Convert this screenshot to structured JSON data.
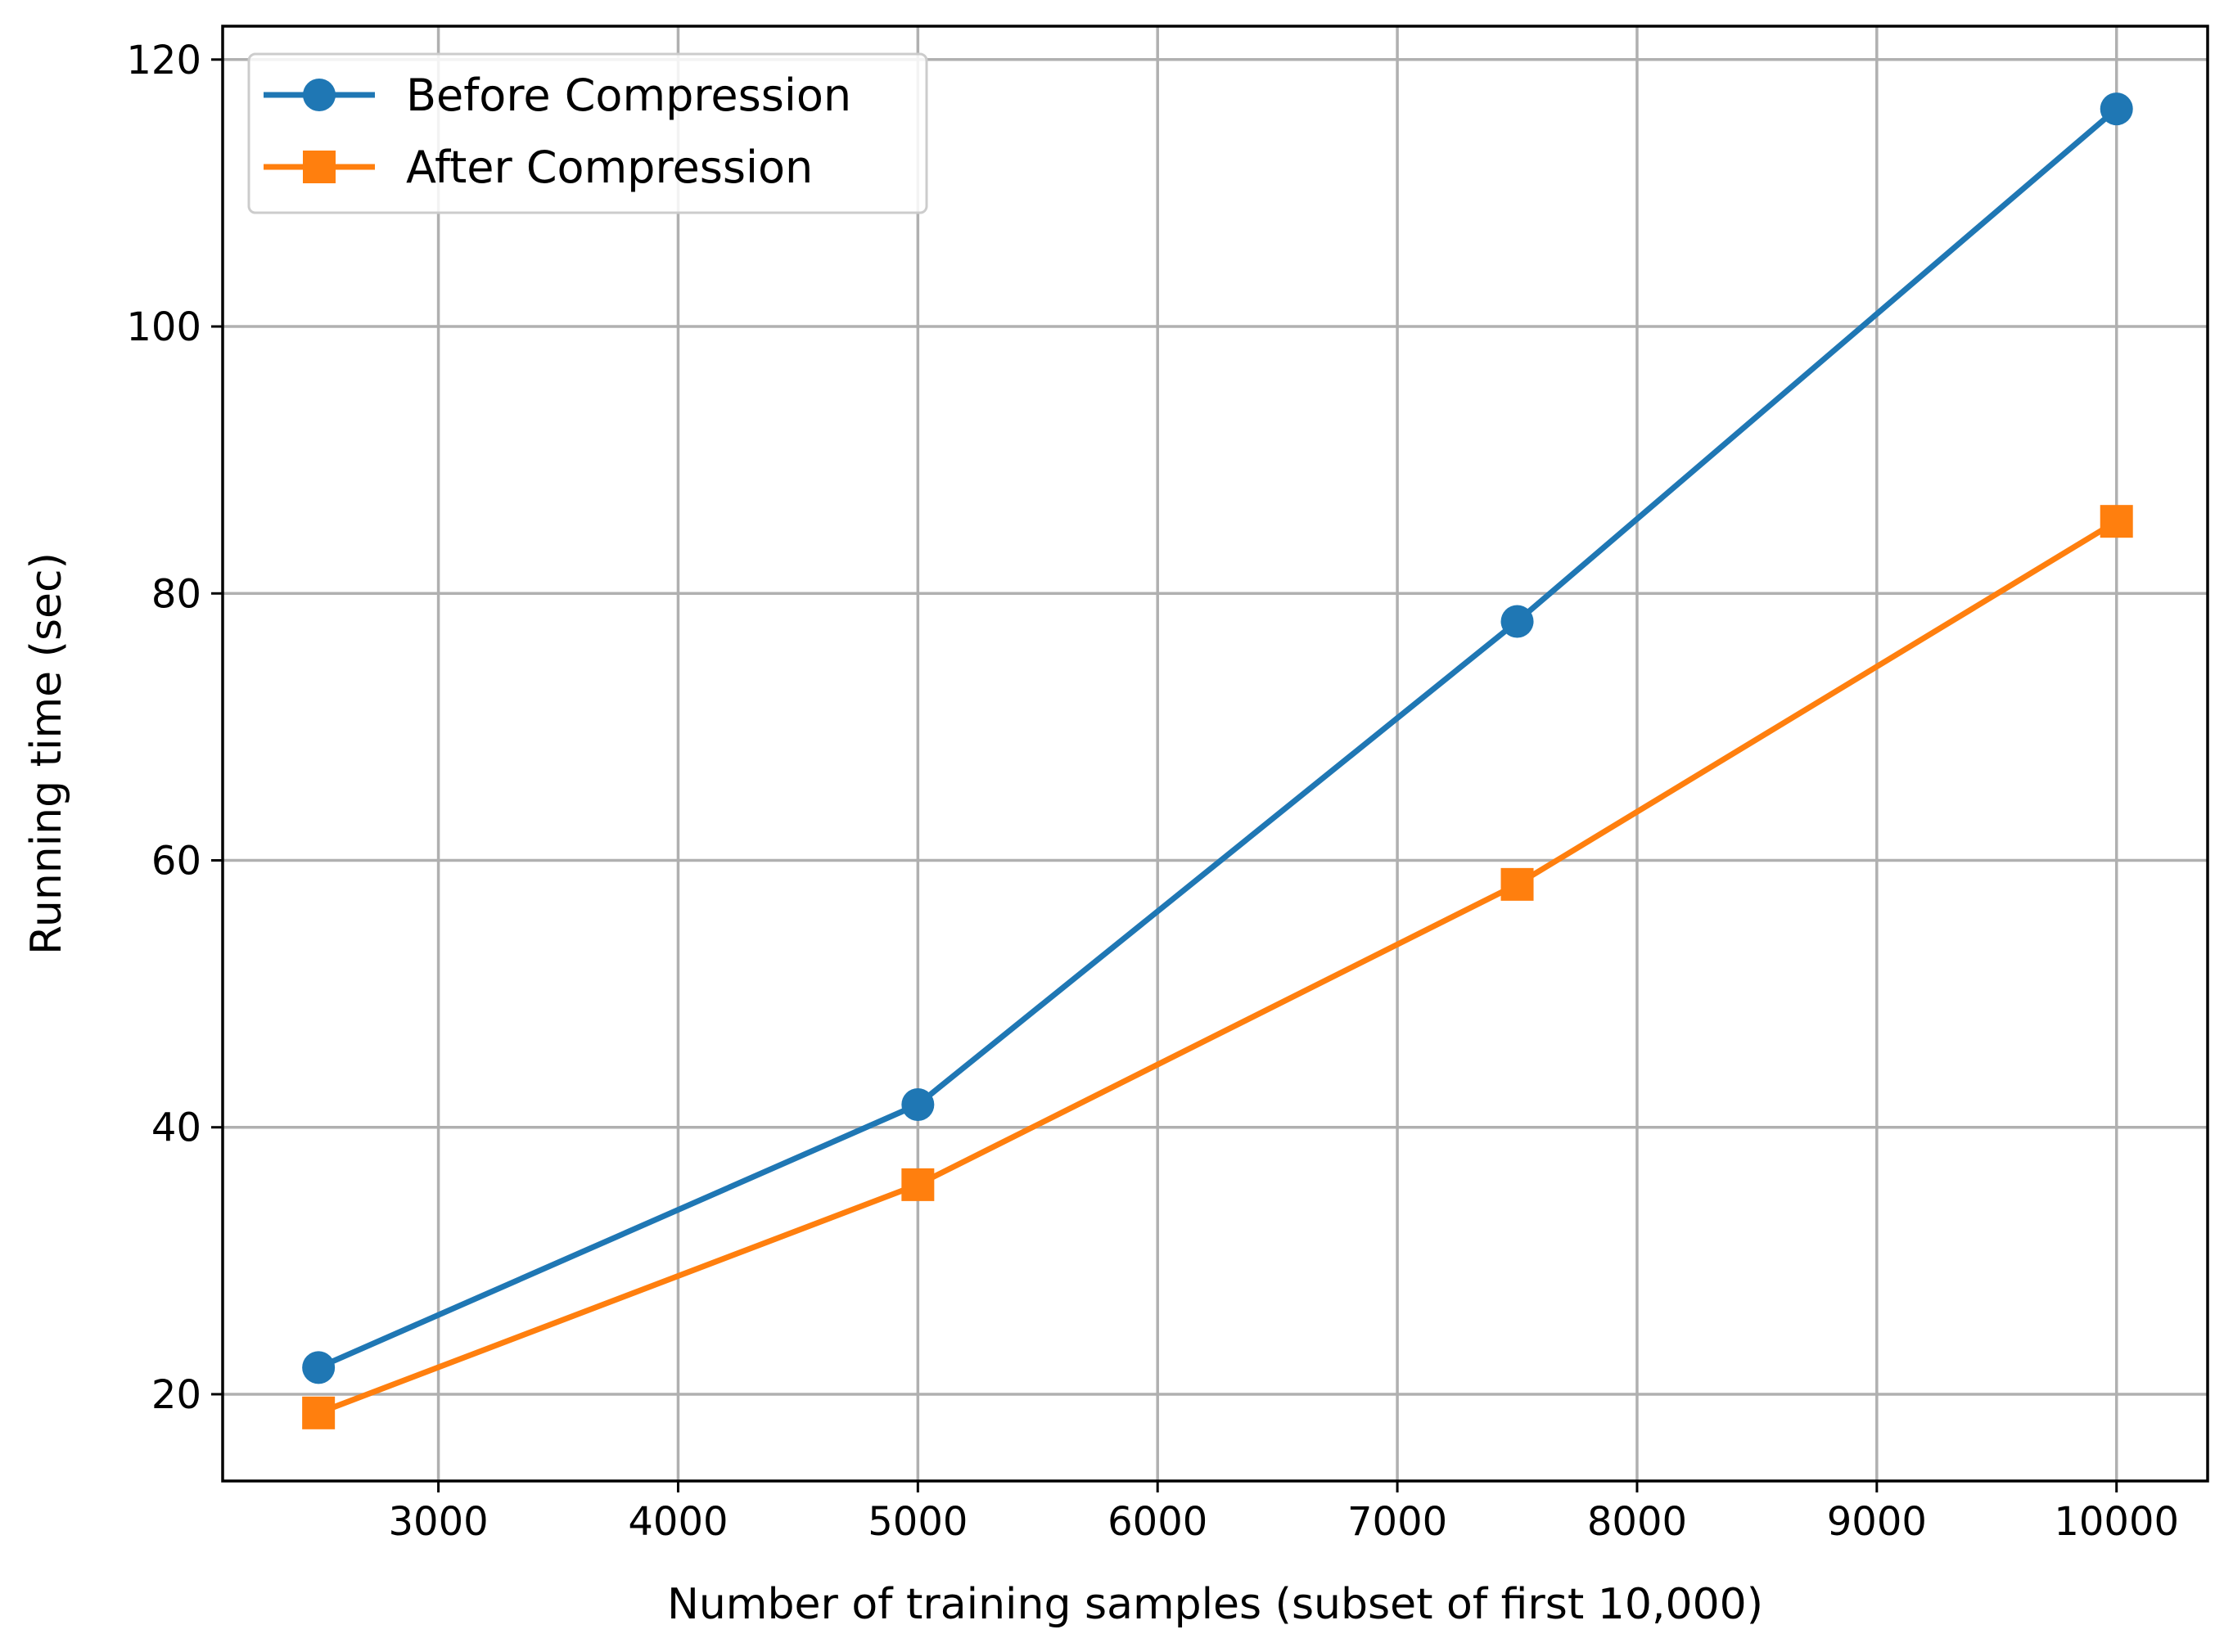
{
  "chart_data": {
    "type": "line",
    "title": "",
    "xlabel": "Number of training samples (subset of first 10,000)",
    "ylabel": "Running time (sec)",
    "xlim": [
      2100,
      10380
    ],
    "ylim": [
      13.5,
      122.5
    ],
    "xticks": [
      3000,
      4000,
      5000,
      6000,
      7000,
      8000,
      9000,
      10000
    ],
    "yticks": [
      20,
      40,
      60,
      80,
      100,
      120
    ],
    "grid": true,
    "legend_position": "top-left",
    "x": [
      2500,
      5000,
      7500,
      10000
    ],
    "series": [
      {
        "name": "Before Compression",
        "values": [
          22.0,
          41.7,
          77.9,
          116.3
        ],
        "color": "#1f77b4",
        "marker": "circle"
      },
      {
        "name": "After Compression",
        "values": [
          18.6,
          35.7,
          58.2,
          85.4
        ],
        "color": "#ff7f0e",
        "marker": "square"
      }
    ]
  }
}
